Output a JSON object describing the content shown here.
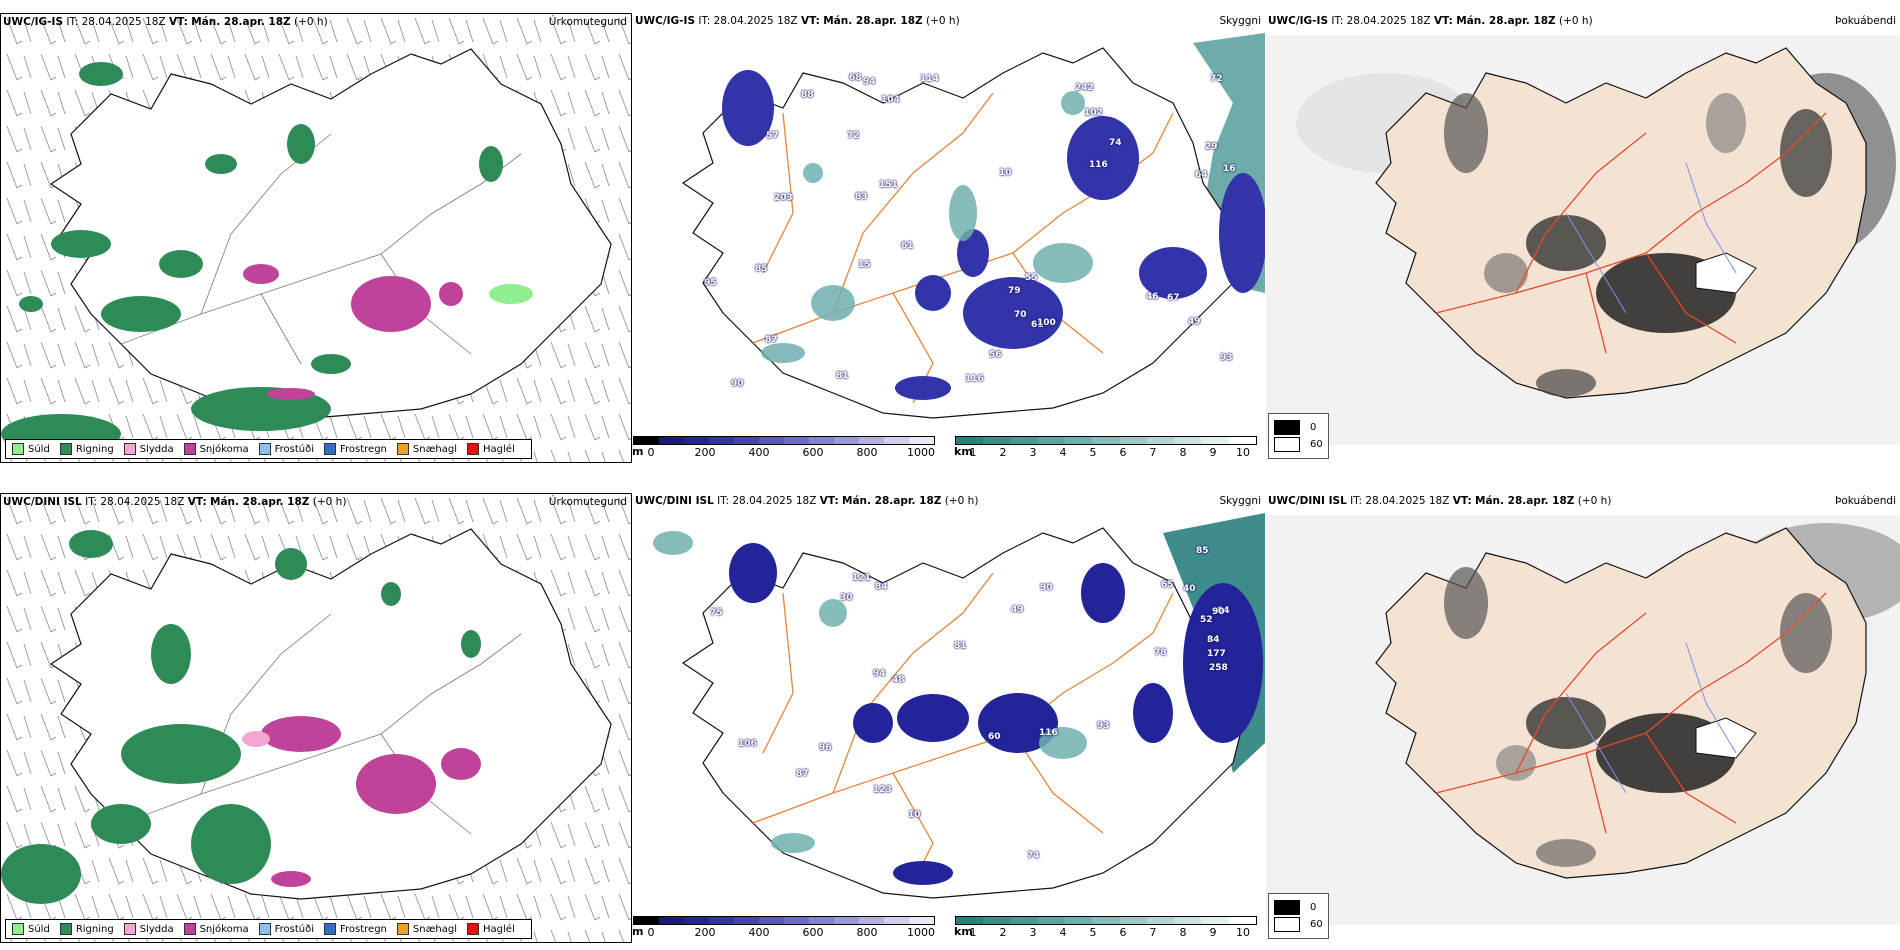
{
  "rows": [
    {
      "model": "UWC/IG-IS",
      "it_label": "IT:",
      "it_value": "28.04.2025 18Z",
      "vt_label": "VT:",
      "vt_value": "Mán. 28.apr. 18Z",
      "lead": "(+0 h)"
    },
    {
      "model": "UWC/DINI ISL",
      "it_label": "IT:",
      "it_value": "28.04.2025 18Z",
      "vt_label": "VT:",
      "vt_value": "Mán. 28.apr. 18Z",
      "lead": "(+0 h)"
    }
  ],
  "panel_labels": {
    "precip_type": "Úrkomutegund",
    "visibility": "Skyggni",
    "fog": "Þokuábendi"
  },
  "precip_legend": [
    {
      "label": "Súld",
      "color": "#90ee90"
    },
    {
      "label": "Rigning",
      "color": "#2e8b57"
    },
    {
      "label": "Slydda",
      "color": "#f4a6d0"
    },
    {
      "label": "Snjókoma",
      "color": "#c0439a"
    },
    {
      "label": "Frostúði",
      "color": "#8fbfef"
    },
    {
      "label": "Frostregn",
      "color": "#2f6fbf"
    },
    {
      "label": "Snæhagl",
      "color": "#f0a020"
    },
    {
      "label": "Haglél",
      "color": "#e81010"
    }
  ],
  "ceiling_bar": {
    "unit": "m",
    "ticks": [
      "0",
      "200",
      "400",
      "600",
      "800",
      "1000"
    ],
    "colors": [
      "#000000",
      "#1a1a7a",
      "#23239a",
      "#3333aa",
      "#4545b4",
      "#5858bc",
      "#6d6dc4",
      "#8383cc",
      "#9a9ad6",
      "#b3b3e0",
      "#cfcfee",
      "#e8e8f7"
    ]
  },
  "visibility_bar": {
    "unit": "km",
    "ticks": [
      "1",
      "2",
      "3",
      "4",
      "5",
      "6",
      "7",
      "8",
      "9",
      "10"
    ],
    "colors": [
      "#2a7f7f",
      "#3a8b8a",
      "#4a9796",
      "#5ca3a2",
      "#6fb0ae",
      "#84bdbb",
      "#9ac9c7",
      "#b1d6d4",
      "#c9e3e1",
      "#e2f0ef",
      "#ffffff"
    ]
  },
  "fog_legend": [
    {
      "value": "0",
      "color": "#000000"
    },
    {
      "value": "60",
      "color": "#ffffff"
    }
  ],
  "map_colors": {
    "coast": "#111111",
    "roads": "#e8853a",
    "land": "#f4e3d3",
    "glacier": "#ffffff",
    "rivers": "#7f8fef",
    "wind_barbs": "#777777"
  },
  "visibility_labels_top": [
    "64",
    "61",
    "61",
    "29",
    "55",
    "10",
    "72",
    "83",
    "90",
    "94",
    "102",
    "114",
    "15",
    "72",
    "93",
    "68",
    "81",
    "87",
    "79",
    "95",
    "57",
    "56",
    "46",
    "151",
    "116",
    "203",
    "85",
    "74",
    "88",
    "116",
    "242",
    "104",
    "70",
    "100",
    "49",
    "16",
    "67"
  ],
  "visibility_labels_bottom": [
    "60",
    "65",
    "84",
    "40",
    "48",
    "10",
    "52",
    "85",
    "75",
    "90",
    "84",
    "87",
    "94",
    "93",
    "96",
    "84",
    "90",
    "81",
    "123",
    "258",
    "121",
    "116",
    "106",
    "177",
    "74",
    "30",
    "78",
    "49"
  ]
}
